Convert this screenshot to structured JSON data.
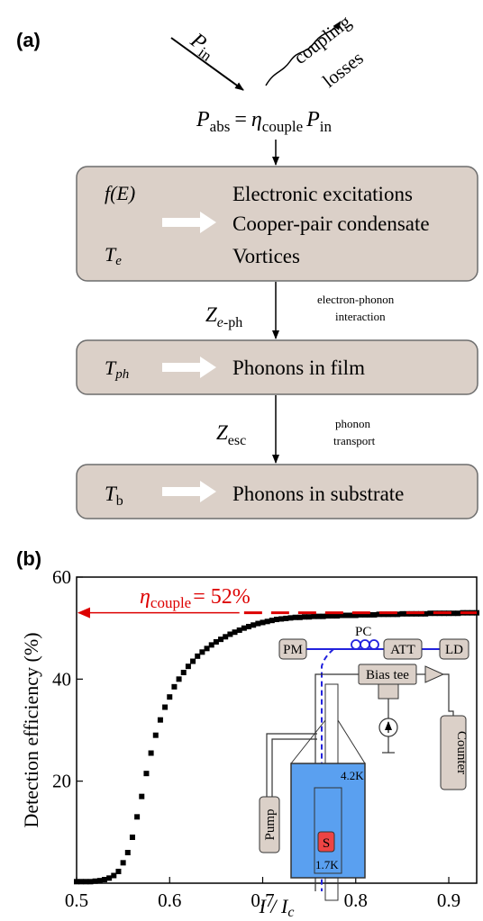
{
  "colors": {
    "box_fill": "#dbd0c8",
    "box_stroke": "#6d6d6d",
    "arrow_white": "#ffffff",
    "red": "#dd0000",
    "blue": "#2222dd",
    "dewar_fill": "#5aa0f0",
    "sample_fill": "#ee4444"
  },
  "panel_a": {
    "label": "(a)",
    "p_in": {
      "main": "P",
      "sub": "in"
    },
    "coupling": "coupling",
    "losses": "losses",
    "p_abs": {
      "lhs_main": "P",
      "lhs_sub": "abs",
      "eq": "=",
      "eta": "η",
      "eta_sub": "couple",
      "rhs_main": "P",
      "rhs_sub": "in"
    },
    "box1": {
      "symbol_top": "f(E)",
      "symbol_bottom_main": "T",
      "symbol_bottom_sub": "e",
      "line1": "Electronic excitations",
      "line2": "Cooper-pair condensate",
      "line3": "Vortices"
    },
    "z_eph": {
      "main": "Z",
      "sub_italic": "e",
      "sub_rest": "-ph"
    },
    "eph_note": [
      "electron-phonon",
      "interaction"
    ],
    "box2": {
      "symbol_main": "T",
      "symbol_sub": "ph",
      "text": "Phonons in film"
    },
    "z_esc": {
      "main": "Z",
      "sub": "esc"
    },
    "esc_note": [
      "phonon",
      "transport"
    ],
    "box3": {
      "symbol_main": "T",
      "symbol_sub": "b",
      "text": "Phonons in substrate"
    }
  },
  "panel_b": {
    "label": "(b)",
    "eta_label": {
      "eta": "η",
      "sub": "couple",
      "rest": "= 52%"
    },
    "setup": {
      "pm": "PM",
      "pc": "PC",
      "att": "ATT",
      "ld": "LD",
      "bias_tee": "Bias tee",
      "counter": "Counter",
      "pump": "Pump",
      "t_high": "4.2K",
      "t_low": "1.7K",
      "sample": "S"
    }
  },
  "chart_data": {
    "type": "scatter",
    "xlabel": "I / Ic",
    "ylabel": "Detection efficiency (%)",
    "xlim": [
      0.5,
      0.93
    ],
    "ylim": [
      0,
      60
    ],
    "xticks": [
      "0.5",
      "0.6",
      "0.7",
      "0.8",
      "0.9"
    ],
    "yticks": [
      "20",
      "40",
      "60"
    ],
    "series": [
      {
        "points": [
          [
            0.5,
            0.3
          ],
          [
            0.505,
            0.3
          ],
          [
            0.51,
            0.3
          ],
          [
            0.515,
            0.3
          ],
          [
            0.52,
            0.4
          ],
          [
            0.525,
            0.5
          ],
          [
            0.53,
            0.7
          ],
          [
            0.535,
            1.0
          ],
          [
            0.54,
            1.5
          ],
          [
            0.545,
            2.3
          ],
          [
            0.55,
            4.0
          ],
          [
            0.555,
            6.0
          ],
          [
            0.56,
            9.0
          ],
          [
            0.565,
            13.0
          ],
          [
            0.57,
            17.0
          ],
          [
            0.575,
            21.5
          ],
          [
            0.58,
            25.5
          ],
          [
            0.585,
            29.0
          ],
          [
            0.59,
            32.0
          ],
          [
            0.595,
            34.5
          ],
          [
            0.6,
            36.5
          ],
          [
            0.605,
            38.5
          ],
          [
            0.61,
            40.0
          ],
          [
            0.615,
            41.3
          ],
          [
            0.62,
            42.5
          ],
          [
            0.625,
            43.5
          ],
          [
            0.63,
            44.5
          ],
          [
            0.635,
            45.3
          ],
          [
            0.64,
            46.0
          ],
          [
            0.645,
            46.7
          ],
          [
            0.65,
            47.3
          ],
          [
            0.655,
            47.8
          ],
          [
            0.66,
            48.3
          ],
          [
            0.665,
            48.8
          ],
          [
            0.67,
            49.2
          ],
          [
            0.675,
            49.6
          ],
          [
            0.68,
            50.0
          ],
          [
            0.685,
            50.3
          ],
          [
            0.69,
            50.6
          ],
          [
            0.695,
            50.9
          ],
          [
            0.7,
            51.1
          ],
          [
            0.705,
            51.3
          ],
          [
            0.71,
            51.5
          ],
          [
            0.715,
            51.7
          ],
          [
            0.72,
            51.8
          ],
          [
            0.725,
            51.9
          ],
          [
            0.73,
            52.0
          ],
          [
            0.735,
            52.1
          ],
          [
            0.74,
            52.1
          ],
          [
            0.745,
            52.2
          ],
          [
            0.75,
            52.2
          ],
          [
            0.755,
            52.3
          ],
          [
            0.76,
            52.3
          ],
          [
            0.765,
            52.3
          ],
          [
            0.77,
            52.4
          ],
          [
            0.775,
            52.4
          ],
          [
            0.78,
            52.4
          ],
          [
            0.785,
            52.5
          ],
          [
            0.79,
            52.5
          ],
          [
            0.795,
            52.5
          ],
          [
            0.8,
            52.5
          ],
          [
            0.805,
            52.6
          ],
          [
            0.81,
            52.6
          ],
          [
            0.815,
            52.6
          ],
          [
            0.82,
            52.6
          ],
          [
            0.825,
            52.7
          ],
          [
            0.83,
            52.7
          ],
          [
            0.835,
            52.7
          ],
          [
            0.84,
            52.7
          ],
          [
            0.845,
            52.7
          ],
          [
            0.85,
            52.8
          ],
          [
            0.855,
            52.8
          ],
          [
            0.86,
            52.8
          ],
          [
            0.865,
            52.8
          ],
          [
            0.87,
            52.8
          ],
          [
            0.875,
            52.8
          ],
          [
            0.88,
            52.9
          ],
          [
            0.885,
            52.9
          ],
          [
            0.89,
            52.9
          ],
          [
            0.895,
            52.9
          ],
          [
            0.9,
            52.9
          ],
          [
            0.905,
            52.9
          ],
          [
            0.91,
            52.9
          ],
          [
            0.915,
            53.0
          ],
          [
            0.92,
            53.0
          ],
          [
            0.925,
            53.0
          ],
          [
            0.93,
            53.0
          ]
        ]
      }
    ],
    "reference_line": {
      "y": 53,
      "from_x": 0.68,
      "to_x": 0.93,
      "style": "dashed",
      "color": "#dd0000"
    },
    "arrow_to_y_axis": {
      "y": 53,
      "from_x": 0.675,
      "color": "#dd0000"
    }
  }
}
